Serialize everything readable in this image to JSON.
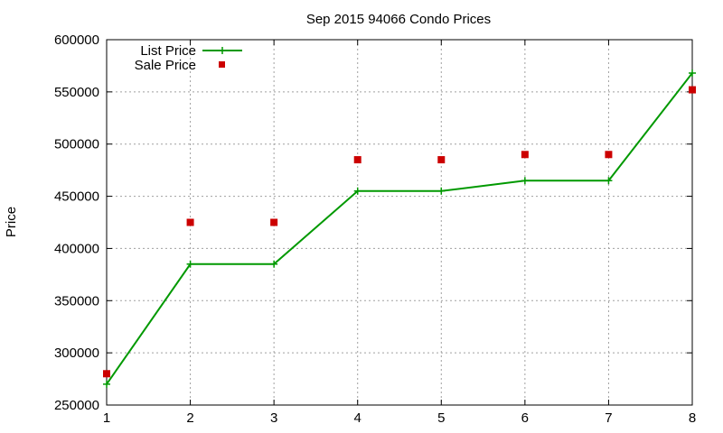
{
  "chart_data": {
    "type": "line",
    "title": "Sep 2015 94066 Condo Prices",
    "xlabel": "",
    "ylabel": "Price",
    "xlim": [
      1,
      8
    ],
    "ylim": [
      250000,
      600000
    ],
    "x_ticks": [
      "1",
      "2",
      "3",
      "4",
      "5",
      "6",
      "7",
      "8"
    ],
    "y_ticks": [
      "250000",
      "300000",
      "350000",
      "400000",
      "450000",
      "500000",
      "550000",
      "600000"
    ],
    "grid": true,
    "legend_position": "top-left",
    "series": [
      {
        "name": "List Price",
        "style": "line-with-plus-markers",
        "color": "#009900",
        "x": [
          1,
          2,
          3,
          4,
          5,
          6,
          7,
          8
        ],
        "values": [
          270000,
          385000,
          385000,
          455000,
          455000,
          465000,
          465000,
          568000
        ]
      },
      {
        "name": "Sale Price",
        "style": "square-markers",
        "color": "#cc0000",
        "x": [
          1,
          2,
          3,
          4,
          5,
          6,
          7,
          8
        ],
        "values": [
          280000,
          425000,
          425000,
          485000,
          485000,
          490000,
          490000,
          552000
        ]
      }
    ]
  }
}
